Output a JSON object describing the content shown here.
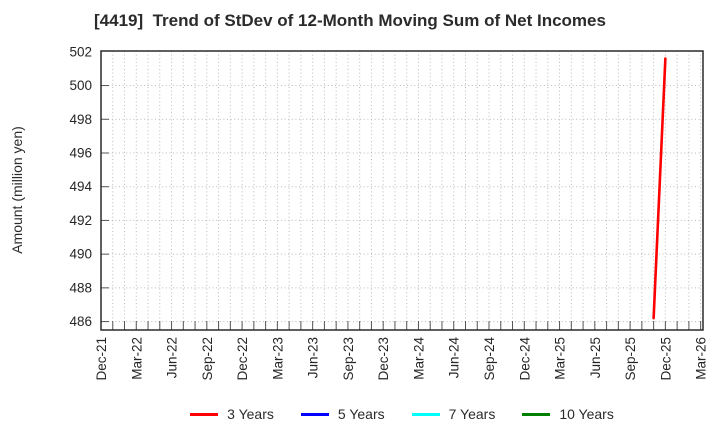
{
  "chart_data": {
    "type": "line",
    "title": "[4419]  Trend of StDev of 12-Month Moving Sum of Net Incomes",
    "ylabel": "Amount (million yen)",
    "x_tick_labels": [
      "Dec-21",
      "Mar-22",
      "Jun-22",
      "Sep-22",
      "Dec-22",
      "Mar-23",
      "Jun-23",
      "Sep-23",
      "Dec-23",
      "Mar-24",
      "Jun-24",
      "Sep-24",
      "Dec-24",
      "Mar-25",
      "Jun-25",
      "Sep-25",
      "Dec-25",
      "Mar-26"
    ],
    "x_tick_month_indices": [
      0,
      3,
      6,
      9,
      12,
      15,
      18,
      21,
      24,
      27,
      30,
      33,
      36,
      39,
      42,
      45,
      48,
      51
    ],
    "y_ticks": [
      486,
      488,
      490,
      492,
      494,
      496,
      498,
      500,
      502
    ],
    "ylim": [
      485.5,
      502.05
    ],
    "xlim_month_range": [
      0,
      51.2
    ],
    "grid": {
      "show": true,
      "style": "dotted",
      "vertical_every_months": 1,
      "horizontal_every_units": 2
    },
    "legend_position": "bottom-center",
    "series": [
      {
        "name": "3 Years",
        "color": "#ff0000",
        "points": [
          {
            "x_label": "Nov-25",
            "x_month_index": 47,
            "y": 486.2
          },
          {
            "x_label": "Dec-25",
            "x_month_index": 48,
            "y": 501.6
          }
        ]
      },
      {
        "name": "5 Years",
        "color": "#0000ff",
        "points": []
      },
      {
        "name": "7 Years",
        "color": "#00ffff",
        "points": []
      },
      {
        "name": "10 Years",
        "color": "#008000",
        "points": []
      }
    ],
    "colors": {
      "grid": "#b9b9b9",
      "spine": "#2a2a2a",
      "tick": "#555555",
      "tick_label": "#262626"
    }
  }
}
